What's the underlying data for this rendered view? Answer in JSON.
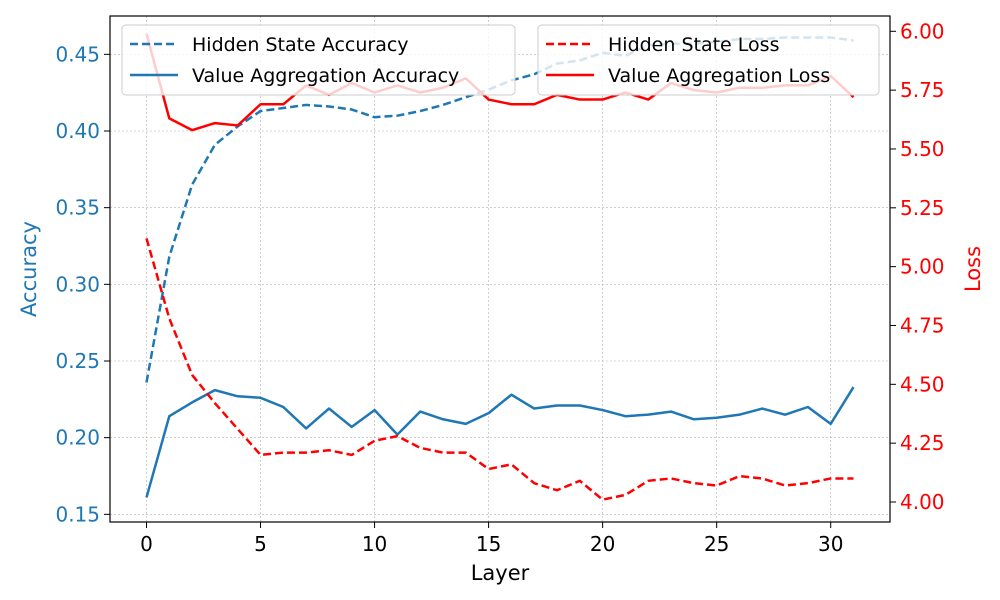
{
  "chart_data": {
    "type": "line",
    "x": [
      0,
      1,
      2,
      3,
      4,
      5,
      6,
      7,
      8,
      9,
      10,
      11,
      12,
      13,
      14,
      15,
      16,
      17,
      18,
      19,
      20,
      21,
      22,
      23,
      24,
      25,
      26,
      27,
      28,
      29,
      30,
      31
    ],
    "xlabel": "Layer",
    "xlim": [
      -1.6,
      32.6
    ],
    "xticks": [
      0,
      5,
      10,
      15,
      20,
      25,
      30
    ],
    "left_axis": {
      "label": "Accuracy",
      "color": "#1f77b4",
      "ylim": [
        0.145,
        0.475
      ],
      "ticks": [
        "0.15",
        "0.20",
        "0.25",
        "0.30",
        "0.35",
        "0.40",
        "0.45"
      ]
    },
    "right_axis": {
      "label": "Loss",
      "color": "#ff0000",
      "ylim": [
        3.915,
        6.065
      ],
      "ticks": [
        "4.00",
        "4.25",
        "4.50",
        "4.75",
        "5.00",
        "5.25",
        "5.50",
        "5.75",
        "6.00"
      ]
    },
    "grid": true,
    "series": [
      {
        "name": "Hidden State Accuracy",
        "axis": "left",
        "color": "#1f77b4",
        "style": "dashed",
        "values": [
          0.236,
          0.318,
          0.365,
          0.391,
          0.403,
          0.413,
          0.415,
          0.417,
          0.416,
          0.414,
          0.409,
          0.41,
          0.413,
          0.417,
          0.422,
          0.427,
          0.433,
          0.437,
          0.444,
          0.446,
          0.451,
          0.449,
          0.456,
          0.457,
          0.457,
          0.458,
          0.46,
          0.46,
          0.461,
          0.461,
          0.461,
          0.459
        ]
      },
      {
        "name": "Value Aggregation Accuracy",
        "axis": "left",
        "color": "#1f77b4",
        "style": "solid",
        "values": [
          0.161,
          0.214,
          0.223,
          0.231,
          0.227,
          0.226,
          0.22,
          0.206,
          0.219,
          0.207,
          0.218,
          0.202,
          0.217,
          0.212,
          0.209,
          0.216,
          0.228,
          0.219,
          0.221,
          0.221,
          0.218,
          0.214,
          0.215,
          0.217,
          0.212,
          0.213,
          0.215,
          0.219,
          0.215,
          0.22,
          0.209,
          0.233
        ]
      },
      {
        "name": "Hidden State Loss",
        "axis": "right",
        "color": "#ff0000",
        "style": "dashed",
        "values": [
          5.12,
          4.78,
          4.54,
          4.42,
          4.31,
          4.2,
          4.21,
          4.21,
          4.22,
          4.2,
          4.26,
          4.28,
          4.23,
          4.21,
          4.21,
          4.14,
          4.16,
          4.08,
          4.05,
          4.09,
          4.01,
          4.03,
          4.09,
          4.1,
          4.08,
          4.07,
          4.11,
          4.1,
          4.07,
          4.08,
          4.1,
          4.1
        ]
      },
      {
        "name": "Value Aggregation Loss",
        "axis": "right",
        "color": "#ff0000",
        "style": "solid",
        "values": [
          5.99,
          5.63,
          5.58,
          5.61,
          5.6,
          5.69,
          5.69,
          5.77,
          5.73,
          5.78,
          5.74,
          5.77,
          5.74,
          5.76,
          5.8,
          5.71,
          5.69,
          5.69,
          5.73,
          5.71,
          5.71,
          5.74,
          5.71,
          5.78,
          5.75,
          5.74,
          5.76,
          5.76,
          5.77,
          5.77,
          5.81,
          5.72
        ]
      }
    ],
    "legends": [
      {
        "placement": "top-left",
        "entries": [
          "Hidden State Accuracy",
          "Value Aggregation Accuracy"
        ]
      },
      {
        "placement": "top-right",
        "entries": [
          "Hidden State Loss",
          "Value Aggregation Loss"
        ]
      }
    ]
  }
}
